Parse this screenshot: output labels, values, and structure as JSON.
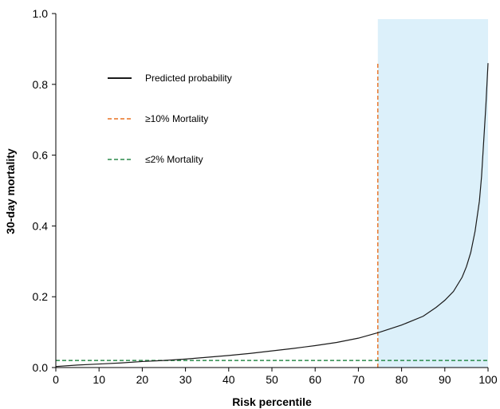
{
  "chart_data": {
    "type": "line",
    "title": "",
    "xlabel": "Risk percentile",
    "ylabel": "30-day mortality",
    "xlim": [
      0,
      100
    ],
    "ylim": [
      0,
      1.0
    ],
    "xticks": [
      0,
      10,
      20,
      30,
      40,
      50,
      60,
      70,
      80,
      90,
      100
    ],
    "yticks": [
      0,
      0.2,
      0.4,
      0.6,
      0.8,
      1.0
    ],
    "xtick_labels": [
      "0",
      "10",
      "20",
      "30",
      "40",
      "50",
      "60",
      "70",
      "80",
      "90",
      "100"
    ],
    "ytick_labels": [
      "0.0",
      "0.2",
      "0.4",
      "0.6",
      "0.8",
      "1.0"
    ],
    "grid": false,
    "legend_position": "upper-left",
    "shaded_region": {
      "x_start": 74.5,
      "x_end": 100,
      "color": "#dcf0fa"
    },
    "series": [
      {
        "name": "Predicted probability",
        "style": "solid",
        "color": "#1a1a1a",
        "x": [
          0,
          5,
          10,
          15,
          20,
          25,
          30,
          35,
          40,
          45,
          50,
          55,
          60,
          65,
          70,
          75,
          80,
          85,
          88,
          90,
          92,
          94,
          95,
          96,
          97,
          98,
          98.5,
          99,
          99.5,
          100
        ],
        "y": [
          0.003,
          0.007,
          0.01,
          0.013,
          0.017,
          0.02,
          0.024,
          0.029,
          0.034,
          0.04,
          0.047,
          0.054,
          0.062,
          0.071,
          0.083,
          0.1,
          0.12,
          0.145,
          0.17,
          0.19,
          0.215,
          0.255,
          0.285,
          0.325,
          0.385,
          0.47,
          0.54,
          0.64,
          0.74,
          0.86
        ]
      },
      {
        "name": "≥10% Mortality",
        "style": "dashed",
        "color": "#e87020",
        "orientation": "vertical",
        "x": [
          74.5,
          74.5
        ],
        "y": [
          0,
          0.86
        ]
      },
      {
        "name": "≤2% Mortality",
        "style": "dashed",
        "color": "#2a8a4a",
        "orientation": "horizontal",
        "x": [
          0,
          100
        ],
        "y": [
          0.02,
          0.02
        ]
      }
    ]
  }
}
